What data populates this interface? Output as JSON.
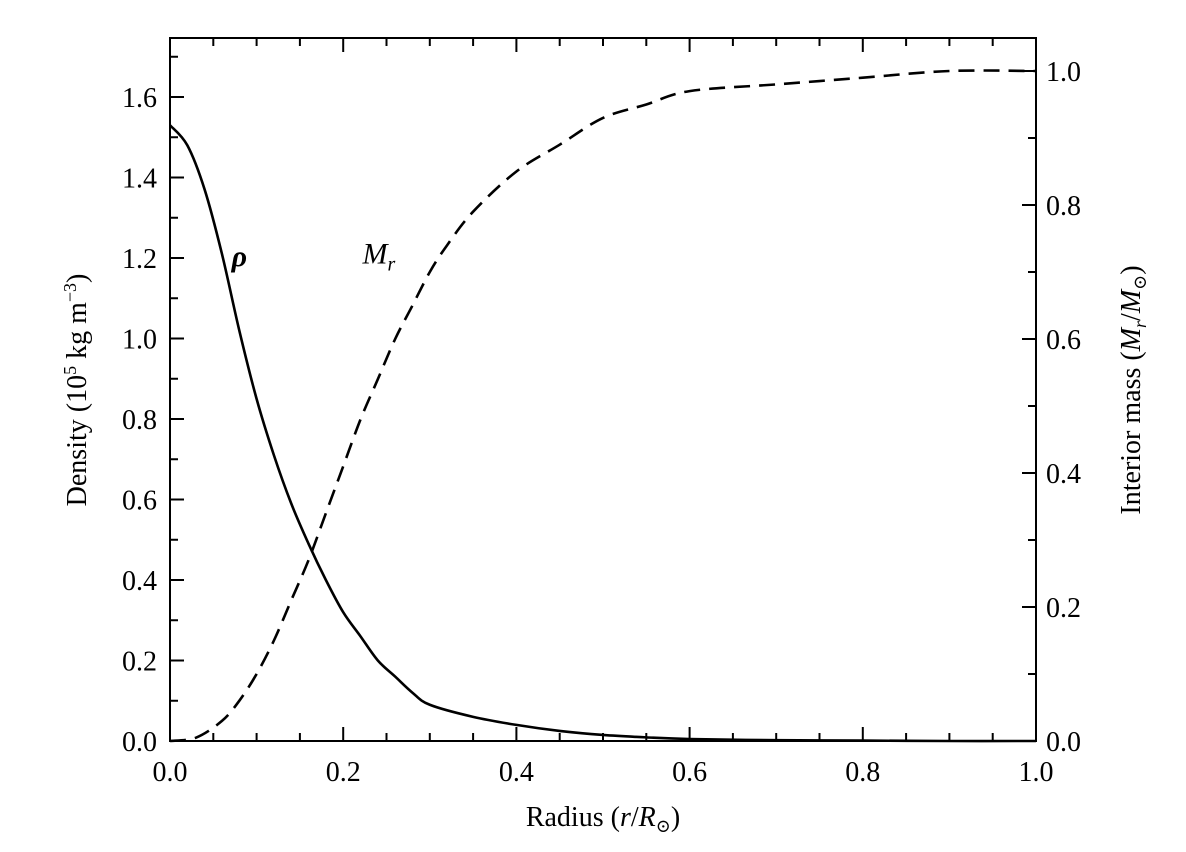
{
  "chart_data": {
    "type": "line",
    "x_label": {
      "text": "Radius (",
      "var_r": "r",
      "slash": "/",
      "var_R": "R",
      "sub": "⊙",
      "close": ")"
    },
    "y_left_label": {
      "text": "Density (10",
      "sup": "5",
      "mid": " kg m",
      "sup2": "−3",
      "close": ")"
    },
    "y_right_label": {
      "text": "Interior mass (",
      "var_M": "M",
      "sub_r": "r",
      "slash": "/",
      "var_M2": "M",
      "sub_sun": "⊙",
      "close": ")"
    },
    "xlim": [
      0.0,
      1.0
    ],
    "y_left_lim": [
      0.0,
      1.72
    ],
    "y_right_lim": [
      0.0,
      1.05
    ],
    "x_ticks": [
      "0.0",
      "0.2",
      "0.4",
      "0.6",
      "0.8",
      "1.0"
    ],
    "x_tick_values": [
      0.0,
      0.2,
      0.4,
      0.6,
      0.8,
      1.0
    ],
    "y_left_ticks": [
      "0.0",
      "0.2",
      "0.4",
      "0.6",
      "0.8",
      "1.0",
      "1.2",
      "1.4",
      "1.6"
    ],
    "y_left_tick_values": [
      0.0,
      0.2,
      0.4,
      0.6,
      0.8,
      1.0,
      1.2,
      1.4,
      1.6
    ],
    "y_right_ticks": [
      "0.0",
      "0.2",
      "0.4",
      "0.6",
      "0.8",
      "1.0"
    ],
    "y_right_tick_values": [
      0.0,
      0.2,
      0.4,
      0.6,
      0.8,
      1.0
    ],
    "series": [
      {
        "name": "ρ",
        "axis": "left",
        "style": "solid",
        "x": [
          0.0,
          0.02,
          0.04,
          0.06,
          0.08,
          0.1,
          0.12,
          0.14,
          0.16,
          0.18,
          0.2,
          0.22,
          0.24,
          0.26,
          0.28,
          0.3,
          0.35,
          0.4,
          0.45,
          0.5,
          0.55,
          0.6,
          0.7,
          0.8,
          0.9,
          1.0
        ],
        "y": [
          1.53,
          1.48,
          1.37,
          1.21,
          1.02,
          0.85,
          0.71,
          0.59,
          0.49,
          0.4,
          0.32,
          0.26,
          0.2,
          0.16,
          0.12,
          0.09,
          0.06,
          0.04,
          0.025,
          0.015,
          0.009,
          0.005,
          0.002,
          0.001,
          0.0,
          0.0
        ]
      },
      {
        "name": "M_r",
        "axis": "right",
        "style": "dashed",
        "x": [
          0.0,
          0.03,
          0.06,
          0.08,
          0.1,
          0.12,
          0.14,
          0.16,
          0.18,
          0.2,
          0.22,
          0.24,
          0.26,
          0.28,
          0.3,
          0.32,
          0.35,
          0.4,
          0.45,
          0.5,
          0.55,
          0.6,
          0.7,
          0.8,
          0.9,
          1.0
        ],
        "y": [
          0.0,
          0.005,
          0.03,
          0.06,
          0.1,
          0.15,
          0.21,
          0.27,
          0.34,
          0.41,
          0.48,
          0.54,
          0.6,
          0.65,
          0.7,
          0.74,
          0.79,
          0.85,
          0.89,
          0.93,
          0.95,
          0.97,
          0.98,
          0.99,
          1.0,
          1.0
        ]
      }
    ],
    "annotations": [
      {
        "text": "ρ",
        "series": "ρ",
        "x": 0.085,
        "y_left": 1.17
      },
      {
        "text": "M",
        "sub": "r",
        "series": "M_r",
        "x": 0.28,
        "y_right": 0.71
      }
    ],
    "grid": false,
    "colors": {
      "line": "#000000",
      "background": "#ffffff"
    }
  }
}
